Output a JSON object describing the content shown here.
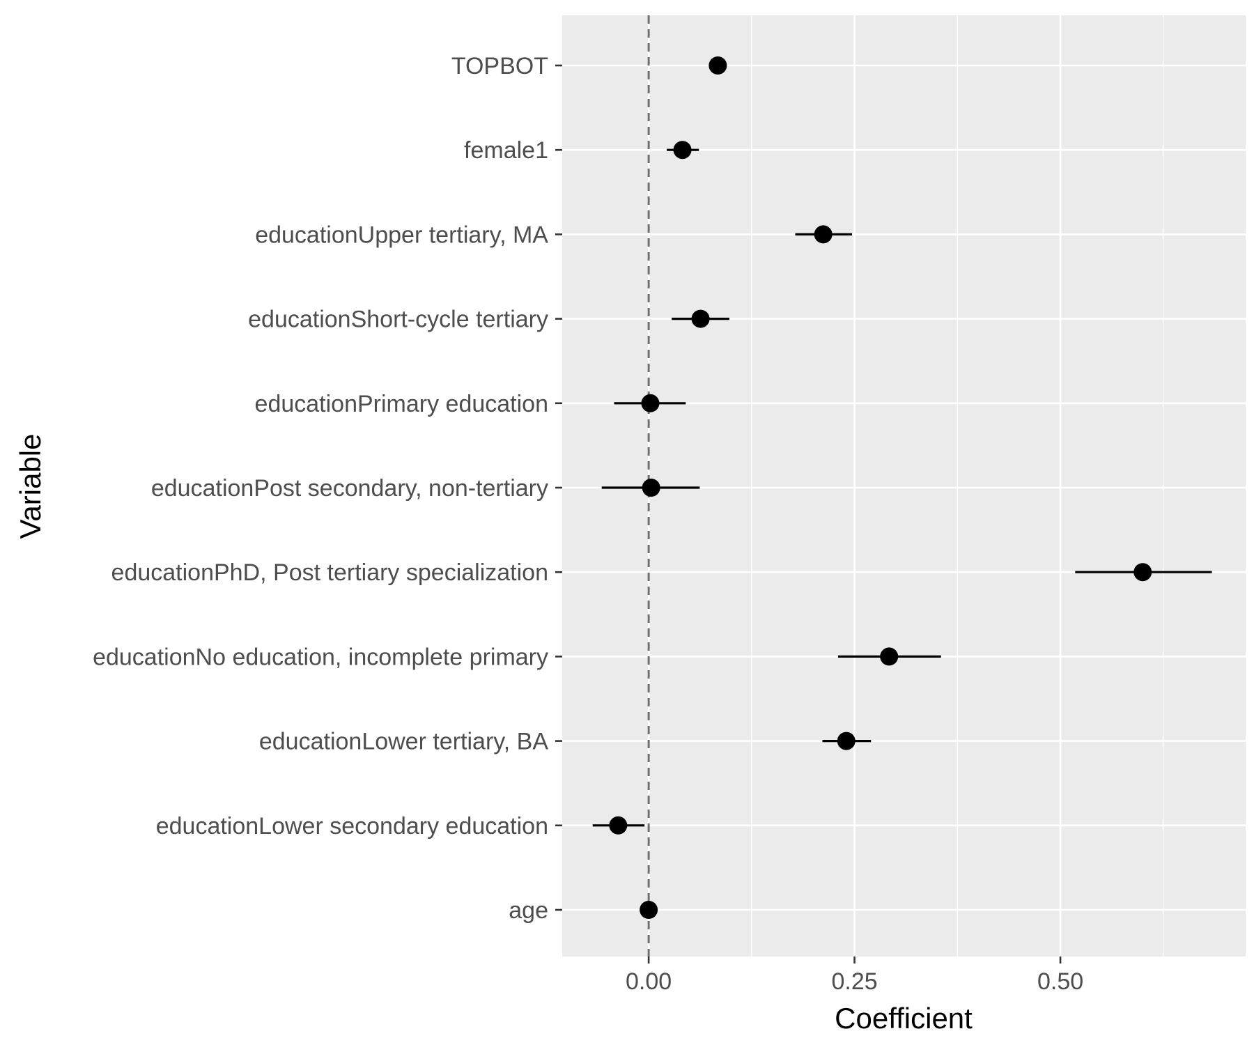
{
  "chart_data": {
    "type": "scatter",
    "subtype": "coefficient-plot",
    "xlabel": "Coefficient",
    "ylabel": "Variable",
    "xlim": [
      -0.105,
      0.725
    ],
    "x_ticks": [
      0.0,
      0.25,
      0.5
    ],
    "x_tick_labels": [
      "0.00",
      "0.25",
      "0.50"
    ],
    "x_minor_gridlines": [
      0.125,
      0.375,
      0.625
    ],
    "reference_line": {
      "x": 0.0,
      "style": "dashed"
    },
    "grid": true,
    "categories": [
      "TOPBOT",
      "female1",
      "educationUpper tertiary, MA",
      "educationShort-cycle tertiary",
      "educationPrimary education",
      "educationPost secondary, non-tertiary",
      "educationPhD, Post tertiary specialization",
      "educationNo education, incomplete primary",
      "educationLower tertiary, BA",
      "educationLower secondary education",
      "age"
    ],
    "estimates": [
      0.084,
      0.041,
      0.212,
      0.063,
      0.002,
      0.003,
      0.6,
      0.292,
      0.24,
      -0.037,
      0.0
    ],
    "ci_low": [
      0.084,
      0.022,
      0.178,
      0.028,
      -0.042,
      -0.057,
      0.518,
      0.23,
      0.211,
      -0.068,
      0.0
    ],
    "ci_high": [
      0.084,
      0.061,
      0.247,
      0.098,
      0.045,
      0.062,
      0.684,
      0.355,
      0.27,
      -0.005,
      0.0
    ],
    "colors": {
      "panel": "#EBEBEB",
      "grid": "#FFFFFF",
      "point": "#000000",
      "reference_line": "#707070",
      "tick_text": "#4D4D4D",
      "title_text": "#000000"
    }
  }
}
